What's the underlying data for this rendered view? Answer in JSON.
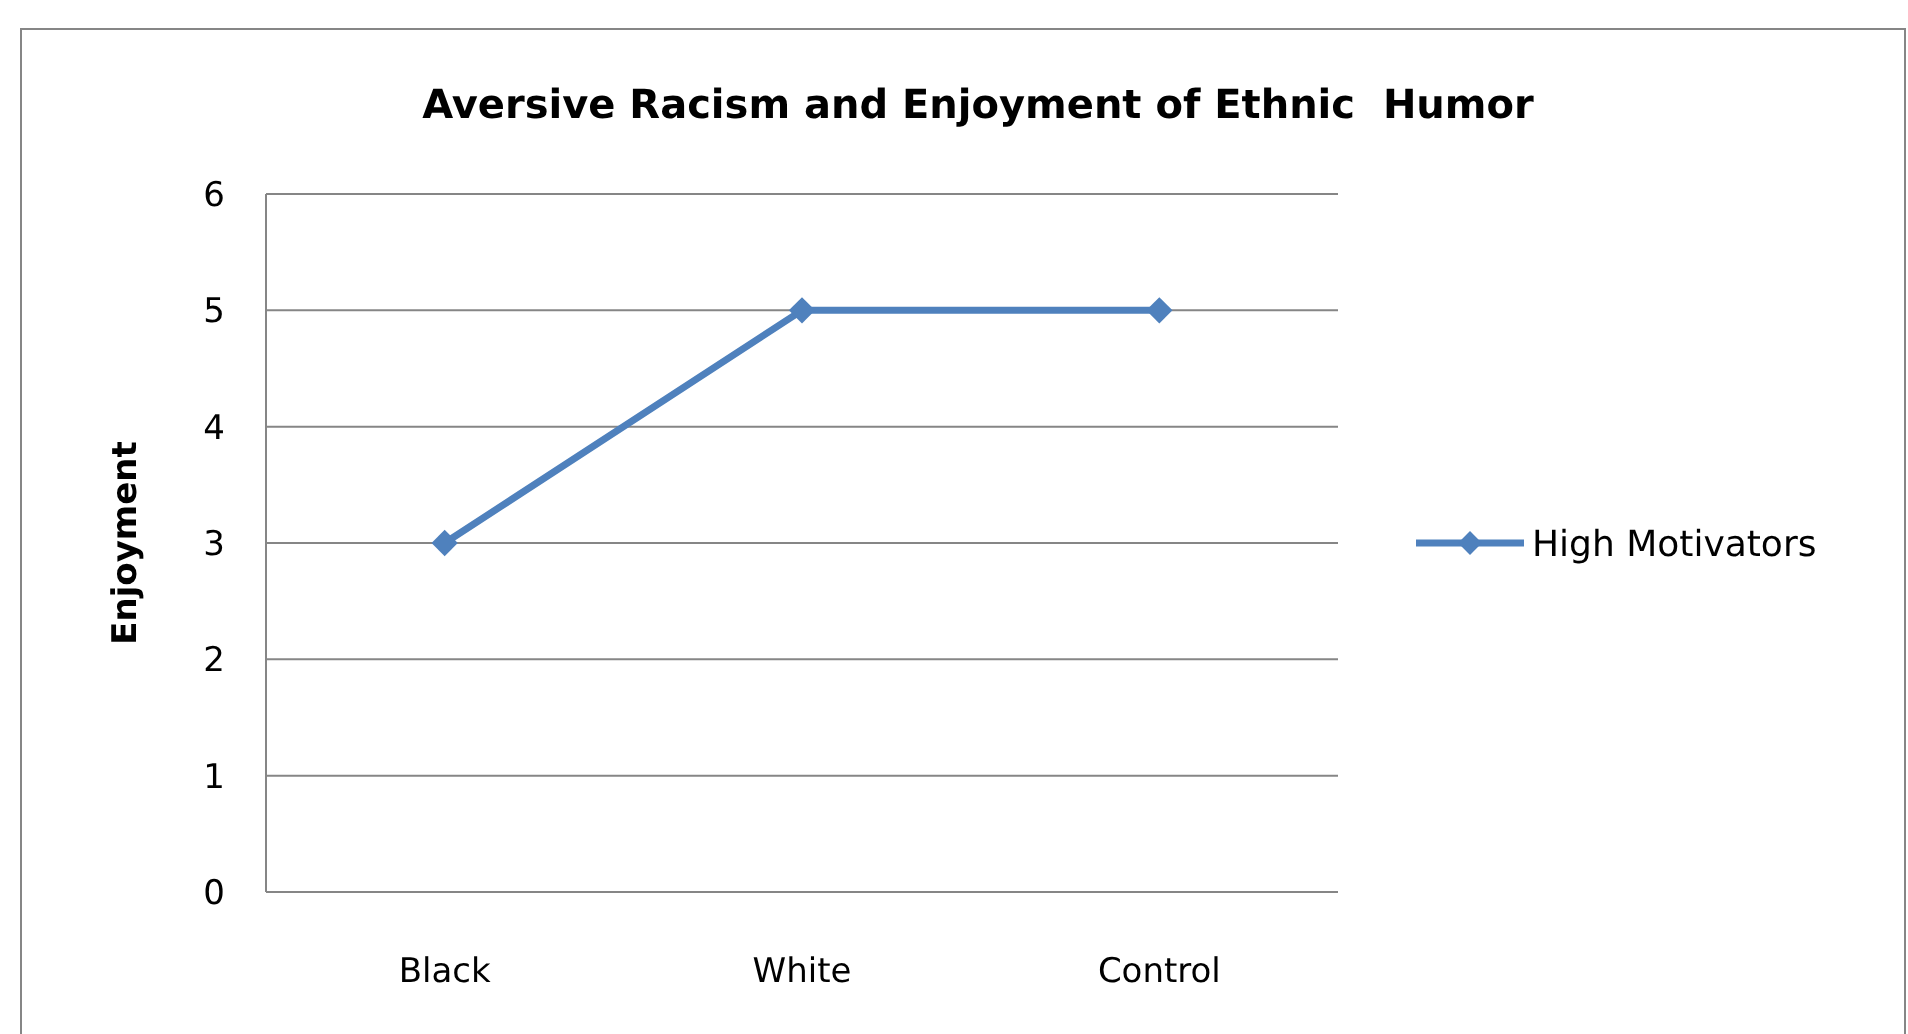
{
  "chart_data": {
    "type": "line",
    "title": "Aversive Racism and Enjoyment of Ethnic  Humor",
    "ylabel": "Enjoyment",
    "categories": [
      "Black",
      "White",
      "Control"
    ],
    "series": [
      {
        "name": "High Motivators",
        "color": "#4f81bd",
        "values": [
          3,
          5,
          5
        ]
      }
    ],
    "ylim": [
      0,
      6
    ],
    "yticks": [
      0,
      1,
      2,
      3,
      4,
      5,
      6
    ],
    "grid": "y",
    "legend": "right",
    "marker": "diamond",
    "line_style": "solid"
  }
}
